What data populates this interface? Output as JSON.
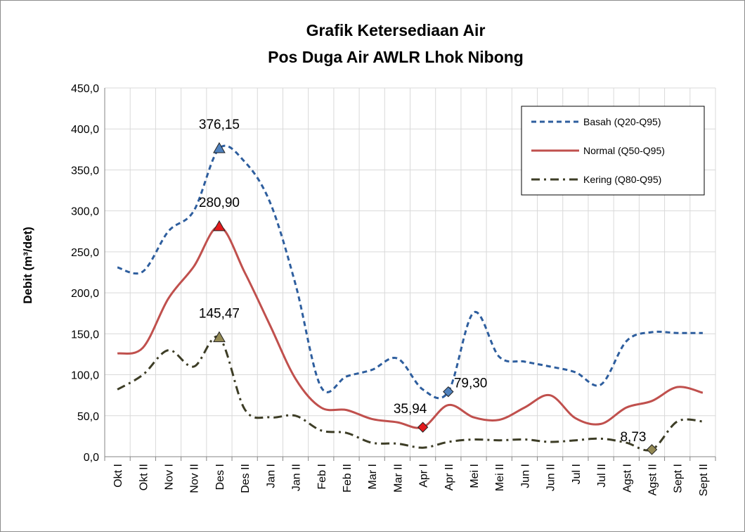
{
  "chart_data": {
    "type": "line",
    "title": "Grafik Ketersediaan Air",
    "subtitle": "Pos Duga Air AWLR Lhok Nibong",
    "ylabel": "Debit (m³/det)",
    "xlabel": "",
    "ylim": [
      0,
      450
    ],
    "yticks": [
      "0,0",
      "50,0",
      "100,0",
      "150,0",
      "200,0",
      "250,0",
      "300,0",
      "350,0",
      "400,0",
      "450,0"
    ],
    "grid": true,
    "legend_position": "top-right",
    "categories": [
      "Okt I",
      "Okt II",
      "Nov I",
      "Nov II",
      "Des I",
      "Des II",
      "Jan I",
      "Jan II",
      "Feb I",
      "Feb II",
      "Mar I",
      "Mar II",
      "Apr I",
      "Apr II",
      "Mei I",
      "Mei II",
      "Jun I",
      "Jun II",
      "Jul I",
      "Jul II",
      "Agst I",
      "Agst II",
      "Sept I",
      "Sept II"
    ],
    "series": [
      {
        "name": "Basah (Q20-Q95)",
        "color": "#2e5e9e",
        "dash": "dashed",
        "values": [
          231,
          226,
          275,
          300,
          376.15,
          360,
          310,
          210,
          85,
          98,
          106,
          120,
          82,
          79.3,
          176,
          122,
          116,
          110,
          103,
          88,
          141,
          152,
          151,
          151
        ],
        "annotations": [
          {
            "index": 4,
            "label": "376,15",
            "marker": "triangle",
            "fill": "#4f81bd"
          },
          {
            "index": 13,
            "label": "79,30",
            "marker": "diamond",
            "fill": "#4f81bd"
          }
        ]
      },
      {
        "name": "Normal (Q50-Q95)",
        "color": "#c0504d",
        "dash": "solid",
        "values": [
          126,
          133,
          193,
          232,
          280.9,
          225,
          160,
          95,
          60,
          57,
          46,
          42,
          35.94,
          63,
          48,
          45,
          60,
          75,
          47,
          40,
          60,
          68,
          85,
          78
        ],
        "annotations": [
          {
            "index": 4,
            "label": "280,90",
            "marker": "triangle",
            "fill": "#e31a1c"
          },
          {
            "index": 12,
            "label": "35,94",
            "marker": "diamond",
            "fill": "#e31a1c"
          }
        ]
      },
      {
        "name": "Kering (Q80-Q95)",
        "color": "#3d3d26",
        "dash": "dashdot",
        "values": [
          82,
          100,
          130,
          110,
          145.47,
          58,
          48,
          50,
          32,
          29,
          17,
          16,
          11,
          18,
          21,
          20,
          21,
          18,
          20,
          22,
          17,
          8.73,
          43,
          43
        ],
        "annotations": [
          {
            "index": 4,
            "label": "145,47",
            "marker": "triangle",
            "fill": "#948a54"
          },
          {
            "index": 21,
            "label": "8,73",
            "marker": "diamond",
            "fill": "#948a54"
          }
        ]
      }
    ]
  }
}
